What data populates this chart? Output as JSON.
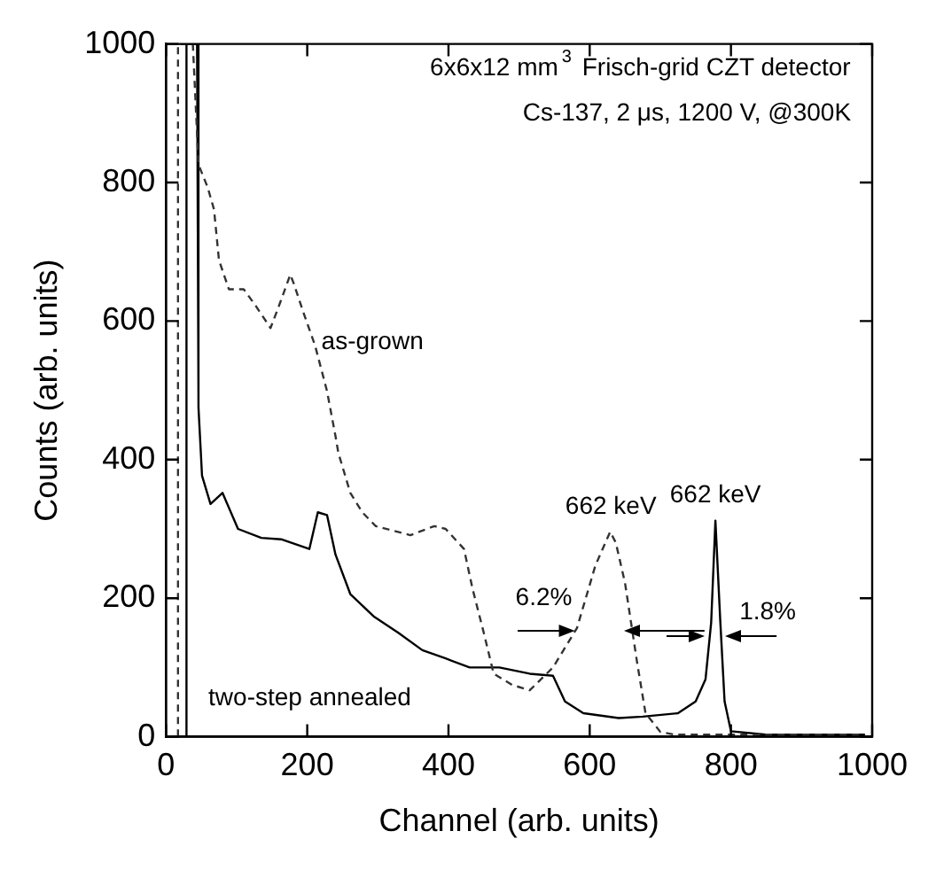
{
  "chart_data": {
    "type": "line",
    "xlabel": "Channel (arb. units)",
    "ylabel": "Counts (arb. units)",
    "xlim": [
      0,
      1000
    ],
    "ylim": [
      0,
      1000
    ],
    "xticks": [
      0,
      200,
      400,
      600,
      800,
      1000
    ],
    "yticks": [
      0,
      200,
      400,
      600,
      800,
      1000
    ],
    "grid": false,
    "legend": false,
    "marker": "none",
    "series": [
      {
        "name": "as-grown",
        "color": "#333333",
        "line_style": "dashed",
        "x": [
          0,
          17,
          17,
          38,
          46,
          59,
          68,
          75,
          89,
          110,
          127,
          148,
          160,
          176,
          181,
          194,
          211,
          228,
          240,
          244,
          261,
          278,
          297,
          346,
          380,
          396,
          422,
          434,
          450,
          464,
          490,
          515,
          548,
          582,
          608,
          629,
          637,
          650,
          667,
          679,
          700,
          720,
          800,
          900,
          990
        ],
        "values": [
          0,
          0,
          1000,
          1000,
          826,
          793,
          761,
          688,
          646,
          646,
          622,
          590,
          622,
          667,
          654,
          614,
          565,
          499,
          434,
          410,
          352,
          324,
          304,
          291,
          304,
          300,
          271,
          214,
          150,
          91,
          75,
          67,
          100,
          157,
          247,
          296,
          280,
          222,
          108,
          34,
          7,
          3,
          3,
          3,
          3
        ]
      },
      {
        "name": "two-step annealed",
        "color": "#000000",
        "line_style": "solid",
        "x": [
          0,
          29,
          29,
          44,
          46,
          51,
          63,
          80,
          102,
          135,
          163,
          203,
          215,
          228,
          240,
          261,
          295,
          329,
          363,
          396,
          430,
          472,
          515,
          548,
          565,
          591,
          641,
          675,
          725,
          750,
          764,
          772,
          778,
          785,
          791,
          800,
          850,
          900,
          990
        ],
        "values": [
          0,
          0,
          1000,
          1000,
          475,
          377,
          336,
          352,
          300,
          287,
          285,
          271,
          324,
          320,
          263,
          206,
          173,
          150,
          125,
          113,
          100,
          100,
          91,
          88,
          51,
          34,
          27,
          29,
          34,
          51,
          83,
          165,
          312,
          165,
          51,
          8,
          3,
          3,
          3
        ]
      }
    ],
    "annotations": [
      "6x6x12 mm$^{3}$ Frisch-grid CZT detector",
      "Cs-137, 2 μs, 1200 V, @300K",
      {
        "text": "662 keV",
        "x": 630,
        "y": 296
      },
      {
        "text": "662 keV",
        "x": 778,
        "y": 312
      },
      "6.2%",
      "1.8%"
    ]
  }
}
